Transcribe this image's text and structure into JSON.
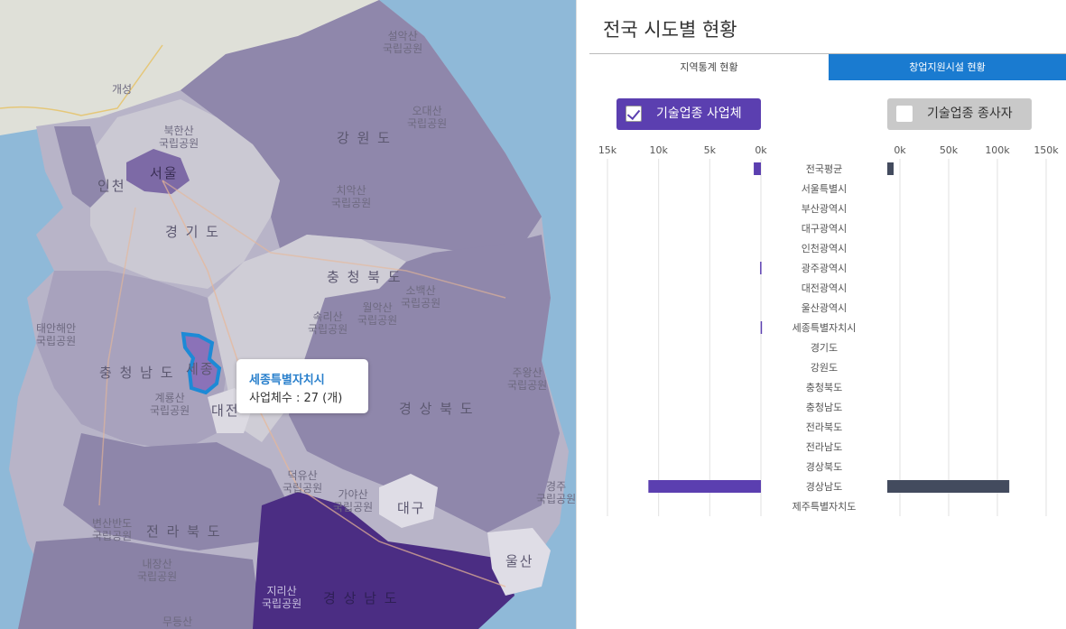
{
  "map": {
    "regions": [
      {
        "label": "강 원 도"
      },
      {
        "label": "경 기 도"
      },
      {
        "label": "충 청 북 도"
      },
      {
        "label": "충 청 남 도"
      },
      {
        "label": "경 상 북 도"
      },
      {
        "label": "전 라 북 도"
      },
      {
        "label": "경 상 남 도"
      },
      {
        "label": "서울"
      },
      {
        "label": "인천"
      },
      {
        "label": "세종"
      },
      {
        "label": "대전"
      },
      {
        "label": "대구"
      },
      {
        "label": "울산"
      },
      {
        "label": "개성"
      }
    ],
    "parks": [
      {
        "label": "설악산\n국립공원"
      },
      {
        "label": "오대산\n국립공원"
      },
      {
        "label": "북한산\n국립공원"
      },
      {
        "label": "치악산\n국립공원"
      },
      {
        "label": "소백산\n국립공원"
      },
      {
        "label": "속리산\n국립공원"
      },
      {
        "label": "월악산\n국립공원"
      },
      {
        "label": "태안해안\n국립공원"
      },
      {
        "label": "계룡산\n국립공원"
      },
      {
        "label": "주왕산\n국립공원"
      },
      {
        "label": "덕유산\n국립공원"
      },
      {
        "label": "가야산\n국립공원"
      },
      {
        "label": "변산반도\n국립공원"
      },
      {
        "label": "내장산\n국립공원"
      },
      {
        "label": "지리산\n국립공원"
      },
      {
        "label": "무등산"
      },
      {
        "label": "경주\n국립공원"
      }
    ],
    "tooltip": {
      "title": "세종특별자치시",
      "value": "사업체수 : 27 (개)"
    }
  },
  "panel": {
    "title": "전국 시도별 현황",
    "tabs": [
      {
        "label": "지역통계 현황",
        "active": false
      },
      {
        "label": "창업지원시설 현황",
        "active": true
      }
    ],
    "toggles": [
      {
        "label": "기술업종 사업체",
        "checked": true
      },
      {
        "label": "기술업종 종사자",
        "checked": false
      }
    ]
  },
  "chart_data": [
    {
      "type": "bar",
      "orientation": "horizontal-reversed",
      "series": [
        {
          "name": "기술업종 사업체",
          "color": "#5b3fb0",
          "values": [
            700,
            0,
            0,
            0,
            0,
            80,
            0,
            0,
            27,
            0,
            0,
            0,
            0,
            0,
            0,
            0,
            11000,
            0
          ]
        }
      ],
      "xlim": [
        0,
        15000
      ],
      "ticks": [
        "15k",
        "10k",
        "5k",
        "0k"
      ],
      "grid": true
    },
    {
      "type": "bar",
      "orientation": "horizontal",
      "series": [
        {
          "name": "기술업종 종사자",
          "color": "#434b5e",
          "values": [
            6500,
            0,
            0,
            0,
            0,
            0,
            0,
            0,
            0,
            0,
            0,
            0,
            0,
            0,
            0,
            0,
            127000,
            0
          ]
        }
      ],
      "xlim": [
        -13000,
        150000
      ],
      "ticks": [
        "0k",
        "50k",
        "100k",
        "150k"
      ],
      "grid": true
    }
  ],
  "categories": [
    "전국평균",
    "서울특별시",
    "부산광역시",
    "대구광역시",
    "인천광역시",
    "광주광역시",
    "대전광역시",
    "울산광역시",
    "세종특별자치시",
    "경기도",
    "강원도",
    "충청북도",
    "충청남도",
    "전라북도",
    "전라남도",
    "경상북도",
    "경상남도",
    "제주특별자치도"
  ]
}
